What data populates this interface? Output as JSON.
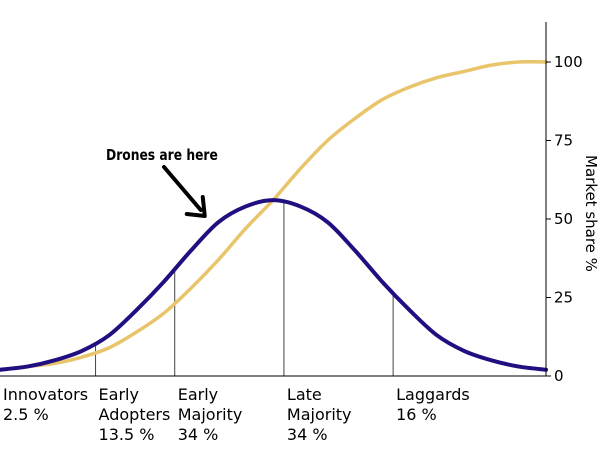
{
  "chart_data": {
    "type": "line",
    "title": "",
    "ylabel": "Market share %",
    "ylim": [
      0,
      100
    ],
    "y_ticks": [
      "0",
      "25",
      "50",
      "75",
      "100"
    ],
    "grid": false,
    "series": [
      {
        "color": "#1f0f80",
        "x": [
          0,
          0.05,
          0.1,
          0.15,
          0.2,
          0.25,
          0.3,
          0.35,
          0.4,
          0.45,
          0.5,
          0.55,
          0.6,
          0.65,
          0.7,
          0.75,
          0.8,
          0.85,
          0.9,
          0.95,
          1.0
        ],
        "values": [
          2,
          3,
          5,
          8,
          13,
          21,
          30,
          40,
          49,
          54,
          56,
          54,
          49,
          40,
          30,
          21,
          13,
          8,
          5,
          3,
          2
        ]
      },
      {
        "color": "#e8c46a",
        "x": [
          0,
          0.05,
          0.1,
          0.15,
          0.2,
          0.25,
          0.3,
          0.35,
          0.4,
          0.45,
          0.5,
          0.55,
          0.6,
          0.65,
          0.7,
          0.75,
          0.8,
          0.85,
          0.9,
          0.95,
          1.0
        ],
        "values": [
          2,
          3,
          4,
          6,
          9,
          14,
          20,
          28,
          37,
          47,
          56,
          66,
          75,
          82,
          88,
          92,
          95,
          97,
          99,
          100,
          100
        ]
      }
    ],
    "segments": [
      {
        "name": "Innovators",
        "pct": "2.5 %"
      },
      {
        "name": "Early Adopters",
        "pct": "13.5 %"
      },
      {
        "name": "Early Majority",
        "pct": "34 %"
      },
      {
        "name": "Late Majority",
        "pct": "34 %"
      },
      {
        "name": "Laggards",
        "pct": "16 %"
      }
    ],
    "segment_boundaries_x": [
      0.175,
      0.32,
      0.52,
      0.72
    ],
    "annotation": {
      "text": "Drones are here",
      "points_to_x": 0.375
    }
  }
}
